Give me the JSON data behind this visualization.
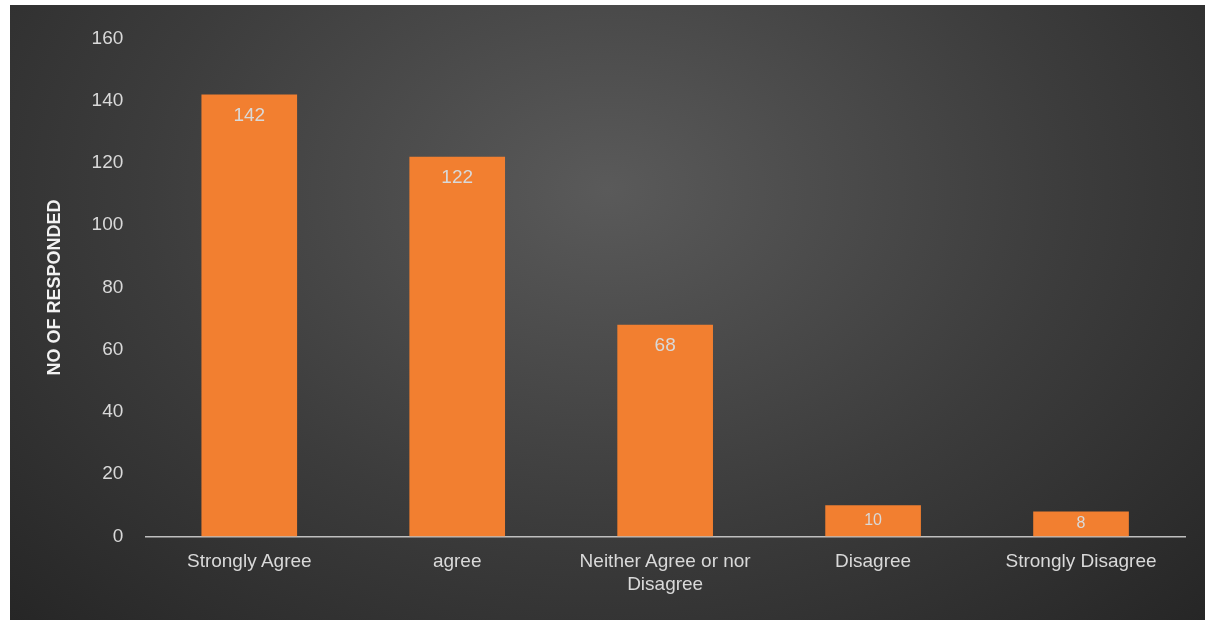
{
  "chart_data": {
    "type": "bar",
    "ylabel": "NO OF RESPONDED",
    "categories": [
      "Strongly Agree",
      "agree",
      "Neither Agree or nor Disagree",
      "Disagree",
      "Strongly Disagree"
    ],
    "values": [
      142,
      122,
      68,
      10,
      8
    ],
    "color": "#f27f30",
    "ylim": [
      0,
      160
    ],
    "yticks": [
      0,
      20,
      40,
      60,
      80,
      100,
      120,
      140,
      160
    ],
    "grid": false,
    "data_labels": true,
    "legend": false
  }
}
